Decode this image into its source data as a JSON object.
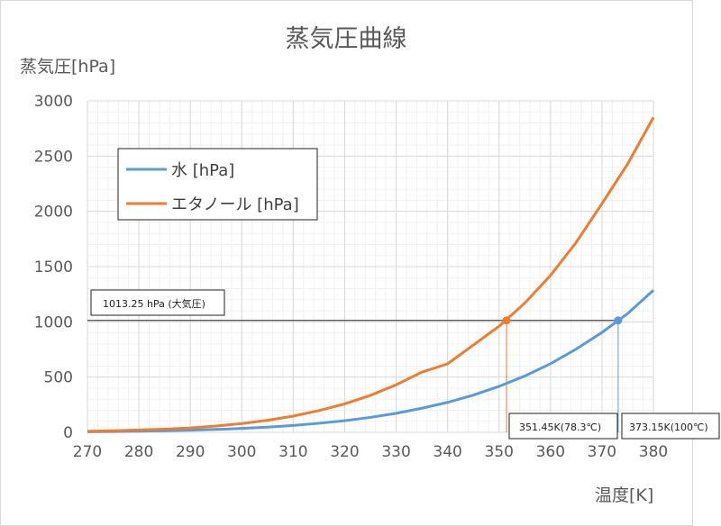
{
  "chart_data": {
    "type": "line",
    "title": "蒸気圧曲線",
    "xlabel": "温度[K]",
    "ylabel": "蒸気圧[hPa]",
    "xlim": [
      270,
      380
    ],
    "ylim": [
      0,
      3000
    ],
    "xticks": [
      270,
      280,
      290,
      300,
      310,
      320,
      330,
      340,
      350,
      360,
      370,
      380
    ],
    "yticks": [
      0,
      500,
      1000,
      1500,
      2000,
      2500,
      3000
    ],
    "grid": true,
    "legend_position": "top-left",
    "x": [
      270,
      275,
      280,
      285,
      290,
      295,
      300,
      305,
      310,
      315,
      320,
      325,
      330,
      335,
      340,
      345,
      350,
      355,
      360,
      365,
      370,
      375,
      380
    ],
    "series": [
      {
        "name": "水 [hPa]",
        "color": "#5b9bd5",
        "values": [
          4.8,
          7,
          10,
          14,
          19.2,
          26,
          35.4,
          47,
          62.3,
          82,
          105.4,
          135,
          172,
          218,
          271,
          337,
          416,
          510,
          621,
          754,
          904,
          1075,
          1286
        ]
      },
      {
        "name": "エタノール [hPa]",
        "color": "#ed7d31",
        "values": [
          10,
          14,
          21,
          29,
          40,
          57,
          79,
          109,
          147,
          197,
          257,
          335,
          430,
          545,
          620,
          790,
          960,
          1170,
          1420,
          1720,
          2070,
          2430,
          2850
        ]
      }
    ],
    "annotations": [
      {
        "text": "1013.25 hPa (大気圧)",
        "y": 1013.25
      },
      {
        "text": "351.45K(78.3℃)",
        "x": 351.45,
        "y": 1013.25,
        "color": "#ed7d31"
      },
      {
        "text": "373.15K(100℃)",
        "x": 373.15,
        "y": 1013.25,
        "color": "#5b9bd5"
      }
    ]
  }
}
